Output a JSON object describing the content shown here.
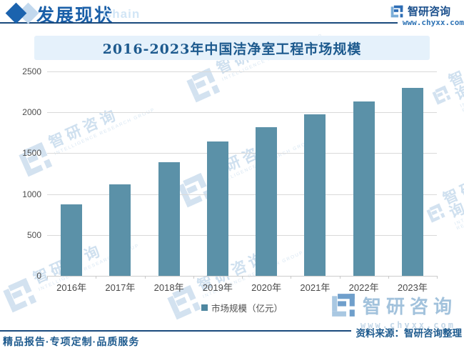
{
  "header": {
    "section_title": "发展现状",
    "section_subtitle": "Chain",
    "brand_name": "智研咨询",
    "brand_url": "www.chyxx.com"
  },
  "chart_data": {
    "type": "bar",
    "title": "2016-2023年中国洁净室工程市场规模",
    "categories": [
      "2016年",
      "2017年",
      "2018年",
      "2019年",
      "2020年",
      "2021年",
      "2022年",
      "2023年"
    ],
    "series": [
      {
        "name": "市场规模（亿元）",
        "values": [
          875,
          1115,
          1390,
          1645,
          1820,
          1975,
          2135,
          2300
        ]
      }
    ],
    "xlabel": "",
    "ylabel": "",
    "unit": "亿元",
    "ylim": [
      0,
      2500
    ],
    "yticks": [
      0,
      500,
      1000,
      1500,
      2000,
      2500
    ],
    "grid": true,
    "legend_position": "bottom",
    "bar_color": "#5b91a8"
  },
  "legend": {
    "label": "市场规模（亿元）"
  },
  "footer": {
    "source": "资料来源：智研咨询整理",
    "services": "精品报告·专项定制·品质服务",
    "brand_name": "智研咨询",
    "brand_url": "www.chyxx.com"
  },
  "watermark": {
    "cn": "智研咨询",
    "en": "INTELLIGENCE RESEARCH GROUP"
  },
  "colors": {
    "bar": "#5b91a8",
    "accent_dark_blue": "#1a4a7d",
    "title_text": "#1d5a8e",
    "title_strip_bg": "#e5f1fb",
    "gridline": "#d9d9d9",
    "watermark": "#cfe0ef"
  }
}
